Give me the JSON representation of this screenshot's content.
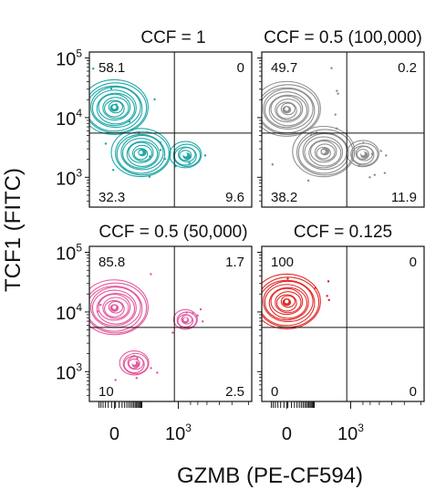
{
  "figure": {
    "y_axis_label": "TCF1 (FITC)",
    "x_axis_label": "GZMB (PE-CF594)"
  },
  "chart_data": [
    {
      "type": "scatter",
      "subtype": "flow-cytometry-contour-quadrant",
      "title": "CCF = 1",
      "color": "#17A3A3",
      "quadrants": {
        "top_left": "58.1",
        "top_right": "0",
        "bottom_left": "32.3",
        "bottom_right": "9.6"
      },
      "y_tick_labels": [
        "10^3",
        "10^4",
        "10^5"
      ],
      "x_tick_labels": [],
      "populations": [
        {
          "x": 0,
          "y": 15000,
          "weight": 1.0
        },
        {
          "x": 100,
          "y": 2600,
          "weight": 0.85
        },
        {
          "x": 1500,
          "y": 2400,
          "weight": 0.35
        }
      ]
    },
    {
      "type": "scatter",
      "subtype": "flow-cytometry-contour-quadrant",
      "title": "CCF = 0.5 (100,000)",
      "color": "#8A8A8A",
      "quadrants": {
        "top_left": "49.7",
        "top_right": "0.2",
        "bottom_left": "38.2",
        "bottom_right": "11.9"
      },
      "y_tick_labels": [],
      "x_tick_labels": [],
      "populations": [
        {
          "x": 0,
          "y": 14000,
          "weight": 1.0
        },
        {
          "x": 200,
          "y": 2700,
          "weight": 0.9
        },
        {
          "x": 2000,
          "y": 2500,
          "weight": 0.35
        }
      ]
    },
    {
      "type": "scatter",
      "subtype": "flow-cytometry-contour-quadrant",
      "title": "CCF = 0.5 (50,000)",
      "color": "#E0529A",
      "quadrants": {
        "top_left": "85.8",
        "top_right": "1.7",
        "bottom_left": "10",
        "bottom_right": "2.5"
      },
      "y_tick_labels": [
        "10^3",
        "10^4",
        "10^5"
      ],
      "x_tick_labels": [
        "0",
        "10^3"
      ],
      "populations": [
        {
          "x": 0,
          "y": 12000,
          "weight": 1.0
        },
        {
          "x": 60,
          "y": 1400,
          "weight": 0.3
        },
        {
          "x": 1500,
          "y": 7500,
          "weight": 0.2
        }
      ]
    },
    {
      "type": "scatter",
      "subtype": "flow-cytometry-contour-quadrant",
      "title": "CCF = 0.125",
      "color": "#E0231F",
      "quadrants": {
        "top_left": "100",
        "top_right": "0",
        "bottom_left": "0",
        "bottom_right": "0"
      },
      "y_tick_labels": [],
      "x_tick_labels": [
        "0",
        "10^3"
      ],
      "populations": [
        {
          "x": 0,
          "y": 15000,
          "weight": 1.0
        }
      ]
    }
  ]
}
